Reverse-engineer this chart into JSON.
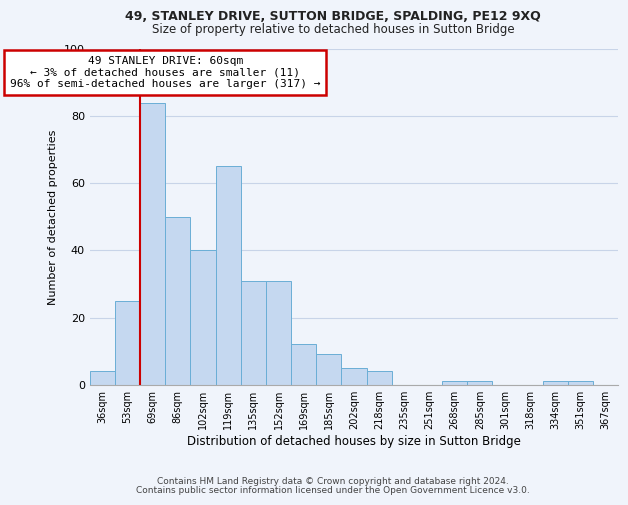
{
  "title1": "49, STANLEY DRIVE, SUTTON BRIDGE, SPALDING, PE12 9XQ",
  "title2": "Size of property relative to detached houses in Sutton Bridge",
  "xlabel": "Distribution of detached houses by size in Sutton Bridge",
  "ylabel": "Number of detached properties",
  "categories": [
    "36sqm",
    "53sqm",
    "69sqm",
    "86sqm",
    "102sqm",
    "119sqm",
    "135sqm",
    "152sqm",
    "169sqm",
    "185sqm",
    "202sqm",
    "218sqm",
    "235sqm",
    "251sqm",
    "268sqm",
    "285sqm",
    "301sqm",
    "318sqm",
    "334sqm",
    "351sqm",
    "367sqm"
  ],
  "values": [
    4,
    25,
    84,
    50,
    40,
    65,
    31,
    31,
    12,
    9,
    5,
    4,
    0,
    0,
    1,
    1,
    0,
    0,
    1,
    1,
    0
  ],
  "bar_color": "#c5d8f0",
  "bar_edge_color": "#6aaed6",
  "annotation_label": "49 STANLEY DRIVE: 60sqm",
  "annotation_line1": "← 3% of detached houses are smaller (11)",
  "annotation_line2": "96% of semi-detached houses are larger (317) →",
  "annotation_box_edge_color": "#cc0000",
  "red_line_color": "#cc0000",
  "ylim": [
    0,
    100
  ],
  "yticks": [
    0,
    20,
    40,
    60,
    80,
    100
  ],
  "background_color": "#f0f4fb",
  "grid_color": "#c8d4e8",
  "footer1": "Contains HM Land Registry data © Crown copyright and database right 2024.",
  "footer2": "Contains public sector information licensed under the Open Government Licence v3.0."
}
